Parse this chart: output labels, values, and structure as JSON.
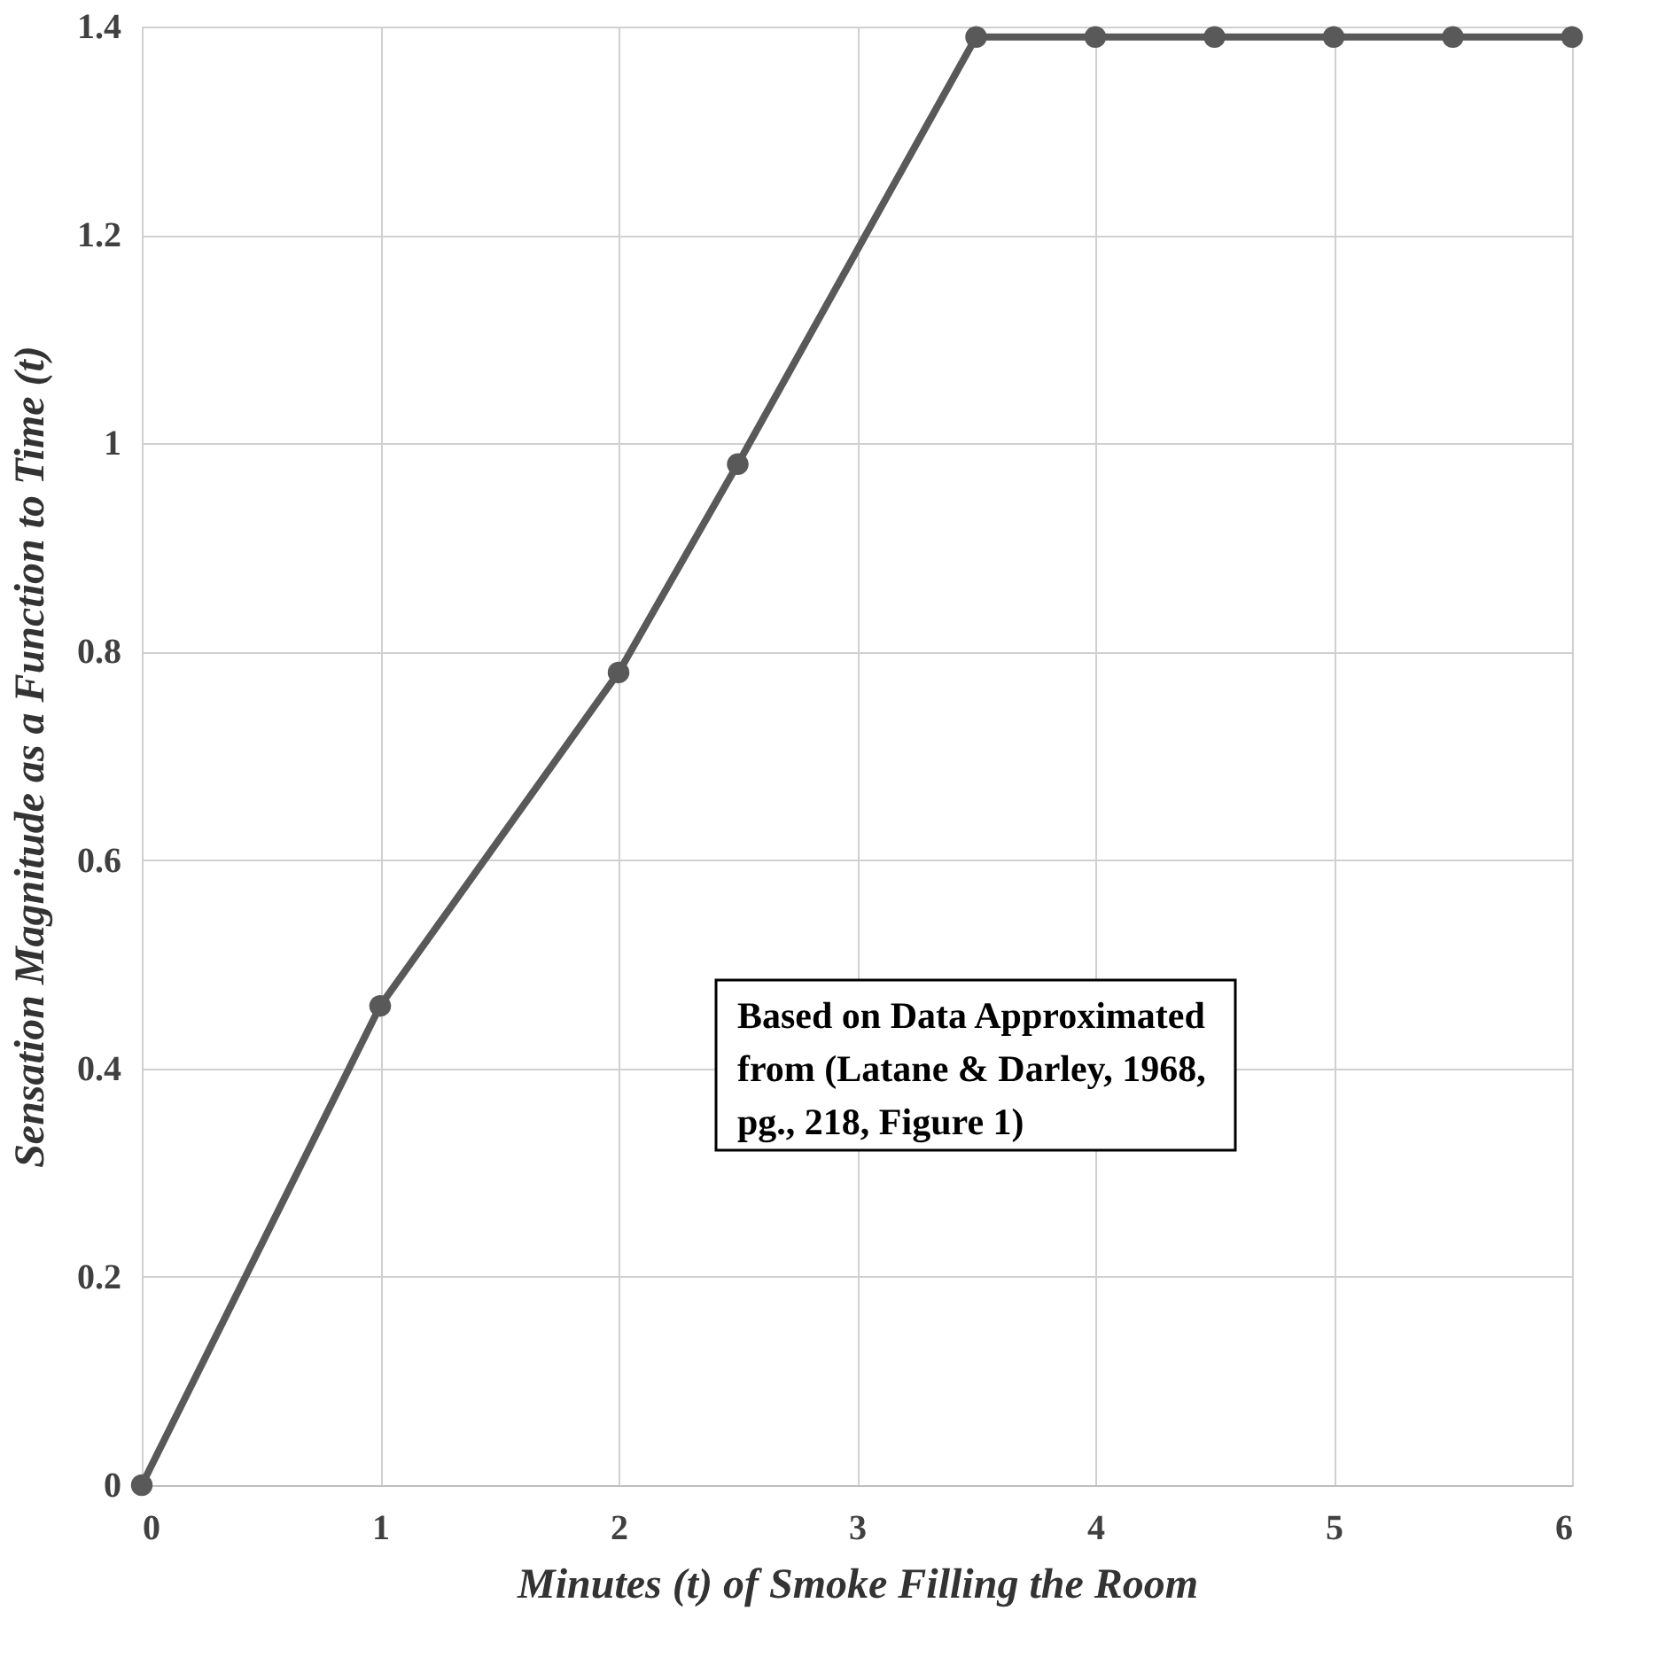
{
  "chart_data": {
    "type": "line",
    "xlabel": "Minutes (t) of Smoke Filling the Room",
    "ylabel": "Sensation Magnitude as a Function to Time (t)",
    "x": [
      0,
      1,
      2,
      2.5,
      3.5,
      4,
      4.5,
      5,
      5.5,
      6
    ],
    "series": [
      {
        "color": "#595959",
        "values": [
          0,
          0.46,
          0.78,
          0.98,
          1.39,
          1.39,
          1.39,
          1.39,
          1.39,
          1.39
        ]
      }
    ],
    "xlim": [
      0,
      6
    ],
    "xticks": [
      0,
      1,
      2,
      3,
      4,
      5,
      6
    ],
    "ylim": [
      0,
      1.4
    ],
    "yticks": [
      0,
      0.2,
      0.4,
      0.6,
      0.8,
      1,
      1.2,
      1.4
    ],
    "grid": true,
    "marker": "circle",
    "line_style": "solid",
    "annotations": [
      "Based on Data Approximated\nfrom (Latane & Darley, 1968,\npg., 218, Figure 1)"
    ]
  }
}
